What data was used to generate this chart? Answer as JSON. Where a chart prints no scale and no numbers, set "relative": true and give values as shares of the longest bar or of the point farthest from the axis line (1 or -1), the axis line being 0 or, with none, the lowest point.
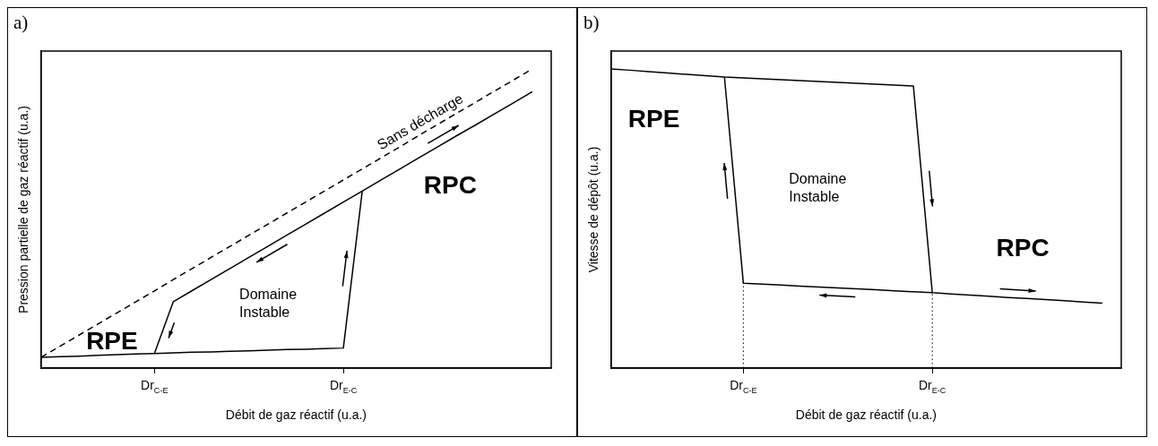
{
  "chart_data": [
    {
      "type": "line",
      "title": "a)",
      "xlabel": "Débit de gaz réactif (u.a.)",
      "ylabel": "Pression partielle de gaz réactif (u.a.)",
      "relative": true,
      "grid": false,
      "legend": false,
      "marker": "none",
      "categories": [
        null,
        null,
        null,
        null,
        null,
        null,
        "Dr$_{C-E}$",
        null,
        null,
        null,
        null,
        null,
        null,
        null,
        null,
        null,
        "Dr$_{E-C}$",
        null,
        null,
        null,
        null,
        null,
        null,
        null,
        null,
        null,
        null,
        null
      ],
      "series": [
        {
          "color": "#000000",
          "line_style": "dashed",
          "values": [
            0.036,
            0.073,
            0.11,
            0.147,
            0.184,
            0.221,
            0.258,
            0.296,
            0.333,
            0.37,
            0.407,
            0.444,
            0.481,
            0.518,
            0.555,
            0.592,
            0.629,
            0.666,
            0.703,
            0.74,
            0.778,
            0.815,
            0.852,
            0.889,
            0.926,
            0.963,
            1.0,
            null
          ]
        },
        {
          "color": "#000000",
          "line_style": "solid",
          "values": [
            0.036,
            0.038,
            0.04,
            0.043,
            0.045,
            0.047,
            0.049,
            0.051,
            0.053,
            0.054,
            0.056,
            0.058,
            0.06,
            0.062,
            0.063,
            0.065,
            0.067,
            0.592,
            0.629,
            0.666,
            0.703,
            0.74,
            0.777,
            0.813,
            0.85,
            0.887,
            0.924,
            null
          ]
        },
        {
          "color": "#000000",
          "line_style": "solid",
          "values": [
            null,
            null,
            null,
            null,
            null,
            null,
            0.049,
            0.222,
            0.259,
            0.296,
            0.333,
            0.37,
            0.407,
            0.444,
            0.481,
            0.518,
            0.555,
            0.592,
            null,
            null,
            null,
            null,
            null,
            null,
            null,
            null,
            null,
            null
          ]
        }
      ],
      "annotations": [
        "Sans décharge",
        "RPE",
        "RPC",
        "Domaine\nInstable"
      ]
    },
    {
      "type": "line",
      "title": "b)",
      "xlabel": "Débit de gaz réactif (u.a.)",
      "ylabel": "Vitesse de dépôt (u.a.)",
      "relative": true,
      "grid": false,
      "legend": false,
      "marker": "none",
      "categories": [
        null,
        null,
        null,
        null,
        null,
        null,
        null,
        "Dr$_{C-E}$",
        null,
        null,
        null,
        null,
        null,
        null,
        null,
        null,
        null,
        "Dr$_{E-C}$",
        null,
        null,
        null,
        null,
        null,
        null,
        null,
        null,
        null,
        null
      ],
      "series": [
        {
          "color": "#000000",
          "line_style": "solid",
          "values": [
            1,
            0.996,
            0.991,
            0.987,
            0.982,
            0.978,
            0.973,
            0.97,
            0.967,
            0.964,
            0.961,
            0.958,
            0.955,
            0.952,
            0.949,
            0.946,
            0.943,
            0.252,
            0.248,
            0.244,
            0.24,
            0.236,
            0.233,
            0.229,
            0.225,
            0.221,
            0.217,
            null
          ]
        },
        {
          "color": "#000000",
          "line_style": "solid",
          "values": [
            null,
            null,
            null,
            null,
            null,
            null,
            0.973,
            0.284,
            0.281,
            0.278,
            0.274,
            0.271,
            0.268,
            0.265,
            0.262,
            0.258,
            0.255,
            0.252,
            null,
            null,
            null,
            null,
            null,
            null,
            null,
            null,
            null,
            null
          ]
        }
      ],
      "ref_lines": [
        {
          "axis": "x",
          "value": "Dr$_{C-E}$",
          "line_style": "dotted"
        },
        {
          "axis": "x",
          "value": "Dr$_{E-C}$",
          "line_style": "dotted"
        }
      ],
      "annotations": [
        "RPE",
        "Domaine\nInstable",
        "RPC"
      ]
    }
  ]
}
